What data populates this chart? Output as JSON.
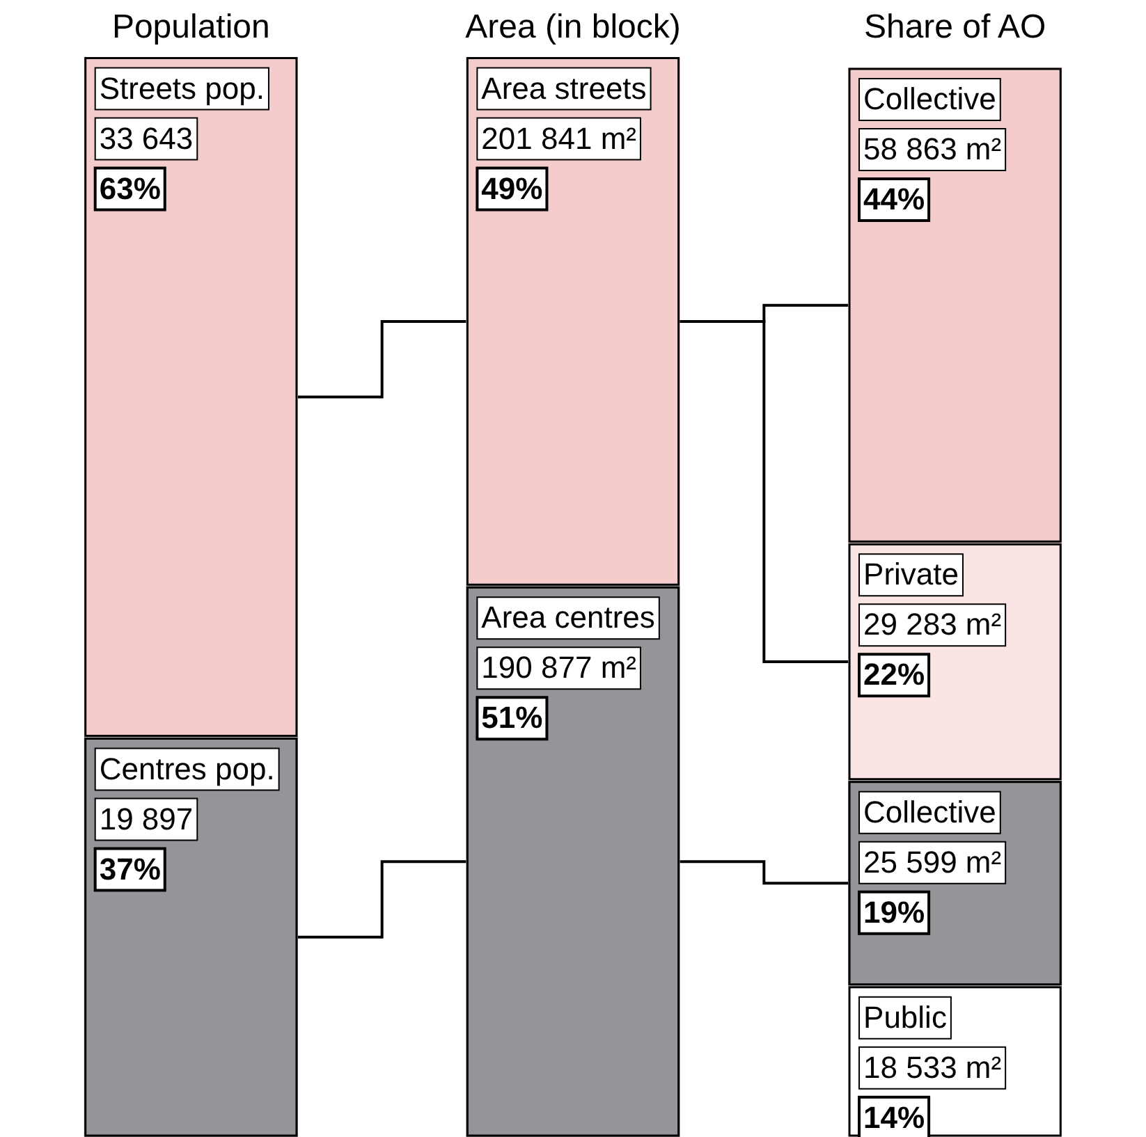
{
  "chart_data": {
    "type": "bar",
    "stacked": true,
    "categories": [
      "Population",
      "Area (in block)",
      "Share of AO"
    ],
    "legend": false,
    "grid": false,
    "series": [
      {
        "name": "Centres pop.",
        "color": "#939598",
        "values": [
          37,
          null,
          null
        ],
        "value_labels": [
          "37%",
          null,
          null
        ]
      },
      {
        "name": "Streets pop.",
        "color": "#f5cccc",
        "values": [
          63,
          null,
          null
        ],
        "value_labels": [
          "63%",
          null,
          null
        ]
      },
      {
        "name": "Area centres",
        "color": "#939598",
        "values": [
          null,
          51,
          null
        ],
        "value_labels": [
          null,
          "51%",
          null
        ]
      },
      {
        "name": "Area streets",
        "color": "#f5cccc",
        "values": [
          null,
          49,
          null
        ],
        "value_labels": [
          null,
          "49%",
          null
        ]
      },
      {
        "name": "Public",
        "color": "#ffffff",
        "values": [
          null,
          null,
          14
        ],
        "value_labels": [
          null,
          null,
          "14%"
        ]
      },
      {
        "name": "Collective",
        "color": "#939598",
        "values": [
          null,
          null,
          19
        ],
        "value_labels": [
          null,
          null,
          "19%"
        ]
      },
      {
        "name": "Private",
        "color": "#fbe4e4",
        "values": [
          null,
          null,
          22
        ],
        "value_labels": [
          null,
          null,
          "22%"
        ]
      },
      {
        "name": "Collective",
        "color": "#f5cccc",
        "values": [
          null,
          null,
          44
        ],
        "value_labels": [
          null,
          null,
          "44%"
        ]
      }
    ],
    "annotations": [
      {
        "text": "19 897",
        "x": "Population",
        "y": 37
      },
      {
        "text": "33 643",
        "x": "Population",
        "y": 100
      },
      {
        "text": "190 877 m²",
        "x": "Area (in block)",
        "y": 51
      },
      {
        "text": "201 841 m²",
        "x": "Area (in block)",
        "y": 100
      },
      {
        "text": "18 533 m²",
        "x": "Share of AO",
        "y": 14
      },
      {
        "text": "25 599 m²",
        "x": "Share of AO",
        "y": 33
      },
      {
        "text": "29 283 m²",
        "x": "Share of AO",
        "y": 55
      },
      {
        "text": "58 863 m²",
        "x": "Share of AO",
        "y": 99
      }
    ]
  }
}
